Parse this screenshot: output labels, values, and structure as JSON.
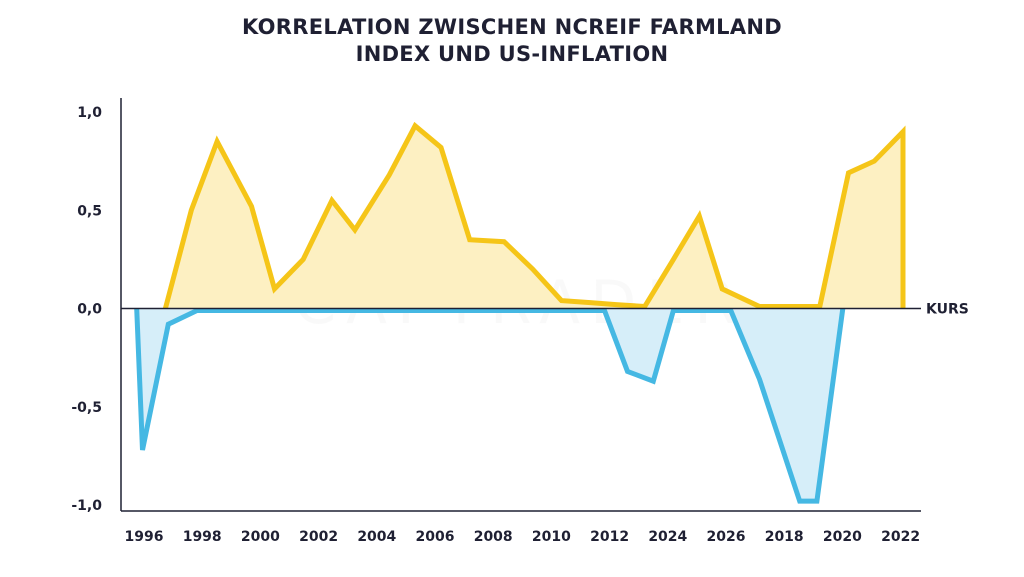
{
  "chart_data": {
    "type": "area",
    "title_lines": [
      "KORRELATION ZWISCHEN NCREIF FARMLAND",
      "INDEX UND US-INFLATION"
    ],
    "x_tick_labels": [
      "1996",
      "1998",
      "2000",
      "2002",
      "2004",
      "2006",
      "2008",
      "2010",
      "2012",
      "2024",
      "2026",
      "2018",
      "2020",
      "2022"
    ],
    "y_tick_labels": [
      "1,0",
      "0,5",
      "0,0",
      "-0,5",
      "-1,0"
    ],
    "y_ticks": [
      1.0,
      0.5,
      0.0,
      -0.5,
      -1.0
    ],
    "ylim": [
      -1.0,
      1.0
    ],
    "xlim": [
      0,
      27
    ],
    "zero_line_label": "KURS",
    "watermark": "CAPTRADER",
    "series": [
      {
        "color": "#f5c518",
        "fill": "#fdf0c2",
        "x": [
          1.2,
          2.1,
          3.0,
          4.2,
          5.0,
          6.0,
          7.0,
          7.8,
          9.0,
          9.9,
          10.8,
          11.8,
          13.0,
          14.0,
          15.0,
          16.0,
          16.9,
          17.9,
          18.9,
          19.8,
          20.6,
          21.9,
          23.0,
          24.0,
          25.0,
          25.9,
          26.9,
          26.9
        ],
        "y": [
          0.0,
          0.5,
          0.85,
          0.52,
          0.1,
          0.25,
          0.55,
          0.4,
          0.68,
          0.93,
          0.82,
          0.35,
          0.34,
          0.2,
          0.04,
          0.03,
          0.02,
          0.01,
          0.25,
          0.47,
          0.1,
          0.01,
          0.01,
          0.01,
          0.69,
          0.75,
          0.9,
          0.0
        ]
      },
      {
        "color": "#45b8e3",
        "fill": "#d6eef9",
        "x": [
          0.2,
          0.4,
          1.3,
          2.3,
          4.4,
          6.4,
          8.4,
          10.4,
          12.4,
          14.5,
          16.5,
          17.3,
          18.2,
          18.9,
          20.9,
          21.9,
          23.3,
          23.9,
          24.8
        ],
        "y": [
          0.0,
          -0.72,
          -0.08,
          -0.01,
          -0.01,
          -0.01,
          -0.01,
          -0.01,
          -0.01,
          -0.01,
          -0.01,
          -0.32,
          -0.37,
          -0.01,
          -0.01,
          -0.36,
          -0.98,
          -0.98,
          0.0
        ]
      }
    ],
    "grid": false,
    "legend": "none"
  }
}
